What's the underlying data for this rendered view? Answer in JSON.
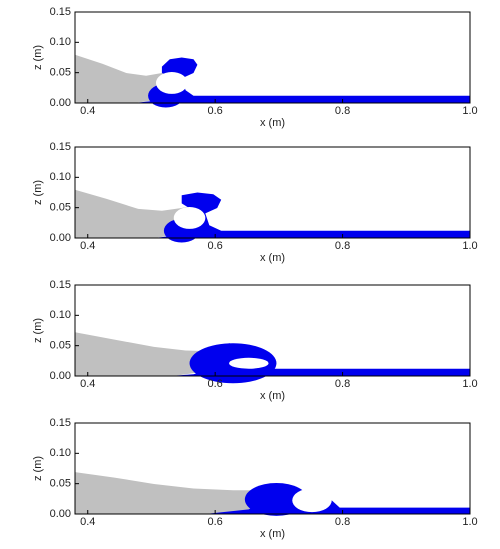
{
  "chart_data": [
    {
      "type": "field",
      "xlabel": "x (m)",
      "ylabel": "z (m)",
      "xlim": [
        0.38,
        1.0
      ],
      "ylim": [
        0,
        0.15
      ],
      "xticks": [
        0.4,
        0.6,
        0.8,
        {
          "value": 1.0,
          "label": "1.0"
        }
      ],
      "yticks": [
        {
          "value": 0,
          "label": "0.00"
        },
        {
          "value": 0.05,
          "label": "0.05"
        },
        {
          "value": 0.1,
          "label": "0.10"
        },
        {
          "value": 0.15,
          "label": "0.15"
        }
      ]
    },
    {
      "type": "field",
      "xlabel": "x (m)",
      "ylabel": "z (m)",
      "xlim": [
        0.38,
        1.0
      ],
      "ylim": [
        0,
        0.15
      ],
      "xticks": [
        0.4,
        0.6,
        0.8,
        {
          "value": 1.0,
          "label": "1.0"
        }
      ],
      "yticks": [
        {
          "value": 0,
          "label": "0.00"
        },
        {
          "value": 0.05,
          "label": "0.05"
        },
        {
          "value": 0.1,
          "label": "0.10"
        },
        {
          "value": 0.15,
          "label": "0.15"
        }
      ]
    },
    {
      "type": "field",
      "xlabel": "x (m)",
      "ylabel": "z (m)",
      "xlim": [
        0.38,
        1.0
      ],
      "ylim": [
        0,
        0.15
      ],
      "xticks": [
        0.4,
        0.6,
        0.8,
        {
          "value": 1.0,
          "label": "1.0"
        }
      ],
      "yticks": [
        {
          "value": 0,
          "label": "0.00"
        },
        {
          "value": 0.05,
          "label": "0.05"
        },
        {
          "value": 0.1,
          "label": "0.10"
        },
        {
          "value": 0.15,
          "label": "0.15"
        }
      ]
    },
    {
      "type": "field",
      "xlabel": "x (m)",
      "ylabel": "z (m)",
      "xlim": [
        0.38,
        1.0
      ],
      "ylim": [
        0,
        0.15
      ],
      "xticks": [
        0.4,
        0.6,
        0.8,
        {
          "value": 1.0,
          "label": "1.0"
        }
      ],
      "yticks": [
        {
          "value": 0,
          "label": "0.00"
        },
        {
          "value": 0.05,
          "label": "0.05"
        },
        {
          "value": 0.1,
          "label": "0.10"
        },
        {
          "value": 0.15,
          "label": "0.15"
        }
      ]
    }
  ]
}
